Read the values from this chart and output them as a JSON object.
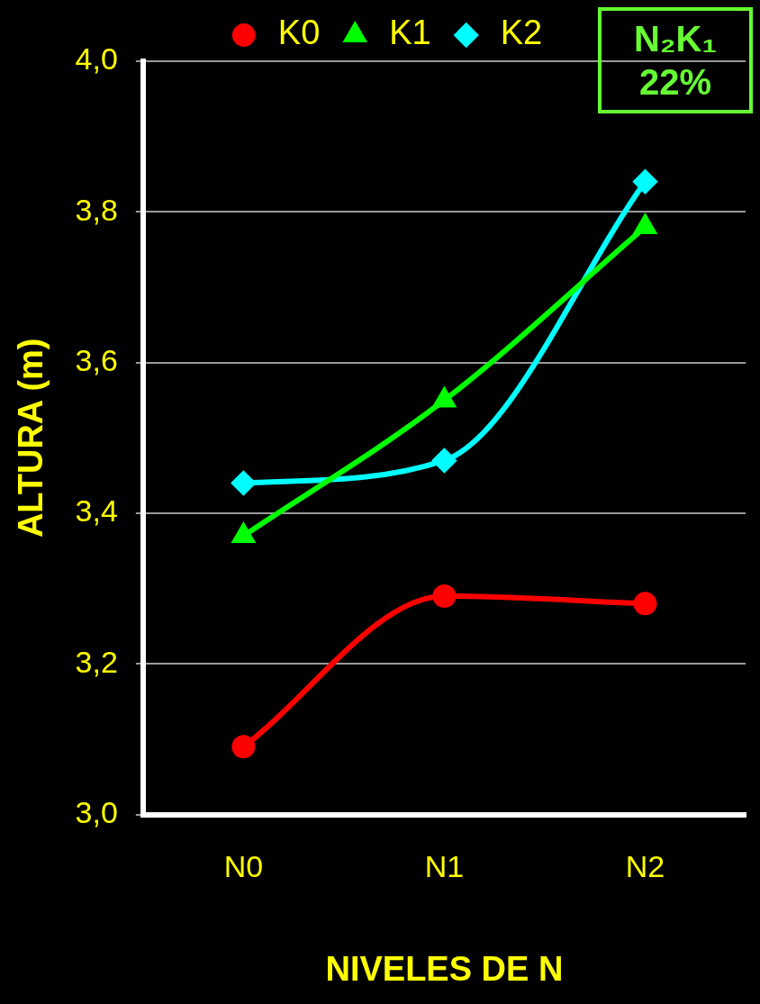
{
  "chart_data": {
    "type": "line",
    "xlabel": "NIVELES DE N",
    "ylabel": "ALTURA (m)",
    "categories": [
      "N0",
      "N1",
      "N2"
    ],
    "series": [
      {
        "name": "K0",
        "color": "#ff0000",
        "marker": "circle",
        "values": [
          3.09,
          3.29,
          3.28
        ]
      },
      {
        "name": "K1",
        "color": "#00ff00",
        "marker": "triangle",
        "values": [
          3.37,
          3.55,
          3.78
        ]
      },
      {
        "name": "K2",
        "color": "#00ffff",
        "marker": "diamond",
        "values": [
          3.44,
          3.47,
          3.84
        ]
      }
    ],
    "ylim": [
      3,
      4
    ],
    "yticks": [
      {
        "value": 3,
        "label": "3,0"
      },
      {
        "value": 3.2,
        "label": "3,2"
      },
      {
        "value": 3.4,
        "label": "3,4"
      },
      {
        "value": 3.6,
        "label": "3,6"
      },
      {
        "value": 3.8,
        "label": "3,8"
      },
      {
        "value": 4,
        "label": "4,0"
      }
    ],
    "grid": "y",
    "legend": "top",
    "line_style": "solid",
    "annotations": [
      "N₂K₁",
      "22%"
    ]
  }
}
